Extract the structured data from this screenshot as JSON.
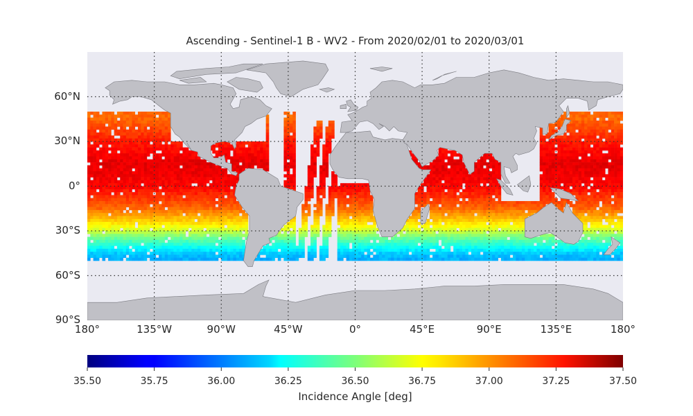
{
  "map": {
    "title": "Ascending - Sentinel-1 B - WV2 - From 2020/02/01 to 2020/03/01",
    "projection": "equirectangular",
    "lon_range": [
      -180,
      180
    ],
    "lat_range": [
      -90,
      90
    ],
    "grid": true,
    "lat_ticks": [
      {
        "value": 60,
        "label": "60°N"
      },
      {
        "value": 30,
        "label": "30°N"
      },
      {
        "value": 0,
        "label": "0°"
      },
      {
        "value": -30,
        "label": "30°S"
      },
      {
        "value": -60,
        "label": "60°S"
      },
      {
        "value": -90,
        "label": "90°S"
      }
    ],
    "lon_ticks": [
      {
        "value": -180,
        "label": "180°"
      },
      {
        "value": -135,
        "label": "135°W"
      },
      {
        "value": -90,
        "label": "90°W"
      },
      {
        "value": -45,
        "label": "45°W"
      },
      {
        "value": 0,
        "label": "0°"
      },
      {
        "value": 45,
        "label": "45°E"
      },
      {
        "value": 90,
        "label": "90°E"
      },
      {
        "value": 135,
        "label": "135°E"
      },
      {
        "value": 180,
        "label": "180°"
      }
    ],
    "colors": {
      "ocean": "#eaeaf2",
      "land": "#c0c0c6",
      "coast": "#7a7a80",
      "grid": "#333333"
    }
  },
  "colorbar": {
    "colormap": "jet",
    "label": "Incidence Angle [deg]",
    "range": [
      35.5,
      37.5
    ],
    "ticks": [
      "35.50",
      "35.75",
      "36.00",
      "36.25",
      "36.50",
      "36.75",
      "37.00",
      "37.25",
      "37.50"
    ]
  },
  "chart_data": {
    "type": "heatmap",
    "variable": "Incidence Angle",
    "unit": "deg",
    "value_range": [
      35.5,
      37.5
    ],
    "coverage_lat": [
      -50,
      50
    ],
    "trend": "~37.3 deg in tropics, decreasing to ~36.1 deg near 48°S",
    "samples": [
      {
        "lat": 45,
        "value": 37.05
      },
      {
        "lat": 30,
        "value": 37.2
      },
      {
        "lat": 15,
        "value": 37.3
      },
      {
        "lat": 0,
        "value": 37.25
      },
      {
        "lat": -15,
        "value": 37.05
      },
      {
        "lat": -25,
        "value": 36.8
      },
      {
        "lat": -30,
        "value": 36.65
      },
      {
        "lat": -35,
        "value": 36.45
      },
      {
        "lat": -40,
        "value": 36.3
      },
      {
        "lat": -45,
        "value": 36.15
      },
      {
        "lat": -48,
        "value": 36.1
      }
    ]
  }
}
